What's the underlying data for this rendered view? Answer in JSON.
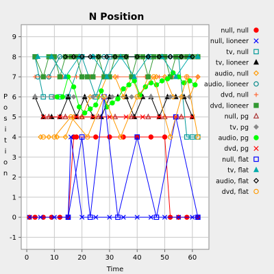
{
  "chart_data": {
    "type": "line",
    "title": "N Position",
    "xlabel": "Time",
    "ylabel": "Position",
    "xlim": [
      -2,
      66
    ],
    "ylim": [
      -1.6,
      9.6
    ],
    "xticks": [
      0,
      10,
      20,
      30,
      40,
      50,
      60
    ],
    "yticks": [
      -1,
      0,
      1,
      2,
      3,
      4,
      5,
      6,
      7,
      8,
      9
    ],
    "grid": true,
    "legend_position": "right",
    "series": [
      {
        "name": "null, null",
        "color": "#ff0000",
        "marker": "circle-filled",
        "x": [
          1,
          3,
          6,
          9,
          12,
          15,
          17,
          18,
          25,
          30,
          35,
          40,
          45,
          50,
          52,
          55,
          58,
          62
        ],
        "y": [
          0,
          0,
          0,
          0,
          0,
          0,
          4,
          4,
          4,
          4,
          4,
          4,
          4,
          4,
          0,
          0,
          0,
          0
        ]
      },
      {
        "name": "null, lioneer",
        "color": "#0000ff",
        "marker": "x",
        "x": [
          1,
          5,
          10,
          15,
          16,
          20,
          25,
          30,
          35,
          40,
          45,
          50,
          55,
          60,
          62
        ],
        "y": [
          0,
          0,
          0,
          0,
          4,
          0,
          0,
          0,
          0,
          0,
          0,
          0,
          0,
          0,
          0
        ]
      },
      {
        "name": "tv, null",
        "color": "#009999",
        "marker": "square-open",
        "x": [
          3,
          6,
          9,
          12,
          15,
          20,
          25,
          30,
          35,
          40,
          45,
          50,
          55,
          58,
          60,
          62
        ],
        "y": [
          8,
          6,
          6,
          6,
          6,
          8,
          6,
          8,
          8,
          8,
          8,
          8,
          8,
          4,
          4,
          4
        ]
      },
      {
        "name": "tv, lioneer",
        "color": "#000000",
        "marker": "triangle-filled",
        "x": [
          3,
          6,
          9,
          12,
          15,
          18,
          21,
          24,
          27,
          30,
          33,
          36,
          39,
          42,
          45,
          48,
          51,
          54,
          57,
          60
        ],
        "y": [
          6,
          5,
          5,
          5,
          6,
          5,
          6,
          5,
          5,
          6,
          6,
          6,
          5,
          6,
          6,
          5,
          6,
          6,
          6,
          5
        ]
      },
      {
        "name": "audio, null",
        "color": "#ff9900",
        "marker": "diamond-open",
        "x": [
          5,
          8,
          11,
          14,
          17,
          20,
          23,
          26,
          29,
          32,
          35,
          38,
          41,
          44,
          47,
          50,
          53,
          56,
          59,
          62
        ],
        "y": [
          4,
          4,
          4,
          4,
          5,
          5,
          6,
          6,
          7,
          7,
          6,
          7,
          6,
          7,
          7,
          7,
          6,
          6,
          6,
          7
        ]
      },
      {
        "name": "audio, lioneer",
        "color": "#008888",
        "marker": "circle-open",
        "x": [
          4,
          8,
          12,
          16,
          20,
          24,
          28,
          32,
          36,
          40,
          44,
          48,
          52,
          56,
          60
        ],
        "y": [
          7,
          7,
          8,
          8,
          8,
          8,
          8,
          8,
          8,
          8,
          8,
          8,
          8,
          8,
          8
        ]
      },
      {
        "name": "dvd, null",
        "color": "#ff6633",
        "marker": "plus",
        "x": [
          3,
          8,
          13,
          18,
          23,
          28,
          33,
          38,
          43,
          48,
          53,
          58,
          62
        ],
        "y": [
          7,
          7,
          7,
          7,
          7,
          7,
          7,
          7,
          7,
          7,
          7,
          7,
          7
        ]
      },
      {
        "name": "dvd, lioneer",
        "color": "#339933",
        "marker": "square-filled",
        "x": [
          3,
          6,
          8,
          10,
          12,
          14,
          16,
          18,
          20,
          22,
          24,
          26,
          28,
          30,
          32,
          34,
          36,
          38,
          40,
          42,
          44,
          46,
          48,
          50,
          52,
          54,
          56,
          58,
          60,
          62
        ],
        "y": [
          8,
          7,
          8,
          8,
          7,
          8,
          8,
          8,
          7,
          7,
          7,
          8,
          7,
          7,
          8,
          8,
          8,
          7,
          8,
          8,
          7,
          8,
          8,
          8,
          7,
          8,
          8,
          8,
          8,
          8
        ]
      },
      {
        "name": "null, pg",
        "color": "#aa3333",
        "marker": "triangle-open",
        "x": [
          8,
          14,
          20,
          26,
          32,
          38,
          44,
          50,
          56
        ],
        "y": [
          5,
          5,
          5,
          5,
          5,
          5,
          5,
          5,
          5
        ]
      },
      {
        "name": "tv, pg",
        "color": "#888888",
        "marker": "diamond-filled",
        "x": [
          3,
          10,
          17,
          24,
          31,
          38,
          45,
          52,
          59
        ],
        "y": [
          6,
          6,
          6,
          6,
          6,
          6,
          6,
          6,
          6
        ]
      },
      {
        "name": "audio, pg",
        "color": "#00ff00",
        "marker": "circle-filled",
        "x": [
          11,
          13,
          15,
          17,
          19,
          21,
          23,
          25,
          27,
          29,
          31,
          33,
          35,
          37,
          39,
          41,
          43,
          45,
          47,
          49,
          51,
          53,
          55,
          57,
          59,
          61
        ],
        "y": [
          6,
          6,
          7,
          6.5,
          5.5,
          5.2,
          5.4,
          5.6,
          6.3,
          5.5,
          5.7,
          5.9,
          6.4,
          6.6,
          6.8,
          6.1,
          6.5,
          6.7,
          6.6,
          6.8,
          6.9,
          7.2,
          7.0,
          6.7,
          6.8,
          6.6
        ]
      },
      {
        "name": "dvd, pg",
        "color": "#ff0000",
        "marker": "x",
        "x": [
          6,
          12,
          18,
          24,
          30,
          36,
          42,
          48,
          54,
          60
        ],
        "y": [
          5,
          5,
          5,
          5,
          5,
          5,
          5,
          5,
          5,
          5
        ]
      },
      {
        "name": "null, flat",
        "color": "#0000ff",
        "marker": "square-open",
        "x": [
          15,
          20,
          23,
          28,
          33,
          40,
          47,
          54,
          62
        ],
        "y": [
          0,
          4,
          0,
          6,
          0,
          4,
          0,
          5,
          0
        ]
      },
      {
        "name": "tv, flat",
        "color": "#00aaaa",
        "marker": "triangle-filled",
        "x": [
          4,
          9,
          14,
          19,
          24,
          29,
          34,
          39,
          44,
          49,
          54,
          59,
          62
        ],
        "y": [
          8,
          8,
          7,
          8,
          8,
          7,
          8,
          7,
          8,
          8,
          7,
          8,
          8
        ]
      },
      {
        "name": "audio, flat",
        "color": "#000000",
        "marker": "diamond-open",
        "x": [
          14,
          17,
          20,
          23,
          26,
          29,
          32,
          36,
          40,
          44,
          48,
          52,
          56,
          60
        ],
        "y": [
          8,
          8,
          8,
          8,
          8,
          8,
          8,
          8,
          8,
          8,
          8,
          8,
          8,
          8
        ]
      },
      {
        "name": "dvd, flat",
        "color": "#ff9900",
        "marker": "circle-open",
        "x": [
          6,
          10,
          16,
          22,
          28,
          34,
          40,
          46,
          52,
          58,
          62
        ],
        "y": [
          4,
          4,
          5,
          4,
          6,
          4,
          6,
          7,
          4,
          7,
          4
        ]
      }
    ]
  }
}
